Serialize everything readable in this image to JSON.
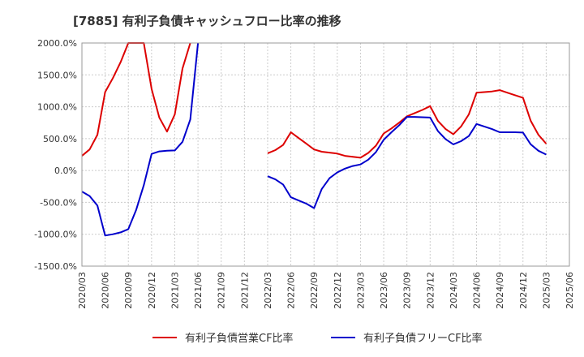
{
  "chart_data": {
    "type": "line",
    "title": "[7885]  有利子負債キャッシュフロー比率の推移",
    "xlabel": "",
    "ylabel": "",
    "ylim": [
      -1500,
      2000
    ],
    "y_ticks": [
      "2000.0%",
      "1500.0%",
      "1000.0%",
      "500.0%",
      "0.0%",
      "-500.0%",
      "-1000.0%",
      "-1500.0%"
    ],
    "y_tick_values": [
      2000,
      1500,
      1000,
      500,
      0,
      -500,
      -1000,
      -1500
    ],
    "x_ticks": [
      "2020/03",
      "2020/06",
      "2020/09",
      "2020/12",
      "2021/03",
      "2021/06",
      "2021/09",
      "2021/12",
      "2022/03",
      "2022/06",
      "2022/09",
      "2022/12",
      "2023/03",
      "2023/06",
      "2023/09",
      "2023/12",
      "2024/03",
      "2024/06",
      "2024/09",
      "2024/12",
      "2025/03",
      "2025/06"
    ],
    "grid": true,
    "legend_position": "bottom",
    "series": [
      {
        "name": "有利子負債営業CF比率",
        "color": "#dd0000",
        "segments": [
          [
            [
              "2020/03",
              230
            ],
            [
              "2020/04",
              330
            ],
            [
              "2020/05",
              560
            ],
            [
              "2020/06",
              1230
            ],
            [
              "2020/07",
              1450
            ],
            [
              "2020/08",
              1700
            ],
            [
              "2020/09",
              2000
            ],
            [
              "2020/11",
              2000
            ],
            [
              "2020/12",
              1280
            ],
            [
              "2021/01",
              830
            ],
            [
              "2021/02",
              610
            ],
            [
              "2021/03",
              880
            ],
            [
              "2021/04",
              1600
            ],
            [
              "2021/05",
              2000
            ]
          ],
          [
            [
              "2022/03",
              270
            ],
            [
              "2022/04",
              320
            ],
            [
              "2022/05",
              400
            ],
            [
              "2022/06",
              600
            ],
            [
              "2022/07",
              510
            ],
            [
              "2022/08",
              420
            ],
            [
              "2022/09",
              330
            ],
            [
              "2022/10",
              295
            ],
            [
              "2022/11",
              280
            ],
            [
              "2022/12",
              265
            ],
            [
              "2023/01",
              230
            ],
            [
              "2023/02",
              215
            ],
            [
              "2023/03",
              200
            ],
            [
              "2023/04",
              275
            ],
            [
              "2023/05",
              390
            ],
            [
              "2023/06",
              580
            ],
            [
              "2023/07",
              660
            ],
            [
              "2023/08",
              750
            ],
            [
              "2023/09",
              850
            ],
            [
              "2023/10",
              900
            ],
            [
              "2023/11",
              950
            ],
            [
              "2023/12",
              1010
            ],
            [
              "2024/01",
              780
            ],
            [
              "2024/02",
              650
            ],
            [
              "2024/03",
              570
            ],
            [
              "2024/04",
              690
            ],
            [
              "2024/05",
              880
            ],
            [
              "2024/06",
              1220
            ],
            [
              "2024/07",
              1230
            ],
            [
              "2024/08",
              1240
            ],
            [
              "2024/09",
              1260
            ],
            [
              "2024/10",
              1220
            ],
            [
              "2024/11",
              1180
            ],
            [
              "2024/12",
              1140
            ],
            [
              "2025/01",
              780
            ],
            [
              "2025/02",
              560
            ],
            [
              "2025/03",
              420
            ]
          ]
        ]
      },
      {
        "name": "有利子負債フリーCF比率",
        "color": "#0000cc",
        "segments": [
          [
            [
              "2020/03",
              -330
            ],
            [
              "2020/04",
              -400
            ],
            [
              "2020/05",
              -550
            ],
            [
              "2020/06",
              -1020
            ],
            [
              "2020/07",
              -1000
            ],
            [
              "2020/08",
              -970
            ],
            [
              "2020/09",
              -920
            ],
            [
              "2020/10",
              -620
            ],
            [
              "2020/11",
              -230
            ],
            [
              "2020/12",
              260
            ],
            [
              "2021/01",
              300
            ],
            [
              "2021/02",
              310
            ],
            [
              "2021/03",
              315
            ],
            [
              "2021/04",
              450
            ],
            [
              "2021/05",
              800
            ],
            [
              "2021/06",
              2000
            ]
          ],
          [
            [
              "2022/03",
              -90
            ],
            [
              "2022/04",
              -140
            ],
            [
              "2022/05",
              -220
            ],
            [
              "2022/06",
              -420
            ],
            [
              "2022/07",
              -470
            ],
            [
              "2022/08",
              -520
            ],
            [
              "2022/09",
              -590
            ],
            [
              "2022/10",
              -290
            ],
            [
              "2022/11",
              -120
            ],
            [
              "2022/12",
              -30
            ],
            [
              "2023/01",
              30
            ],
            [
              "2023/02",
              70
            ],
            [
              "2023/03",
              95
            ],
            [
              "2023/04",
              170
            ],
            [
              "2023/05",
              290
            ],
            [
              "2023/06",
              480
            ],
            [
              "2023/07",
              600
            ],
            [
              "2023/08",
              710
            ],
            [
              "2023/09",
              840
            ],
            [
              "2023/10",
              840
            ],
            [
              "2023/11",
              835
            ],
            [
              "2023/12",
              830
            ],
            [
              "2024/01",
              620
            ],
            [
              "2024/02",
              490
            ],
            [
              "2024/03",
              410
            ],
            [
              "2024/04",
              460
            ],
            [
              "2024/05",
              540
            ],
            [
              "2024/06",
              730
            ],
            [
              "2024/07",
              690
            ],
            [
              "2024/08",
              650
            ],
            [
              "2024/09",
              600
            ],
            [
              "2024/10",
              600
            ],
            [
              "2024/11",
              600
            ],
            [
              "2024/12",
              595
            ],
            [
              "2025/01",
              410
            ],
            [
              "2025/02",
              310
            ],
            [
              "2025/03",
              250
            ]
          ]
        ]
      }
    ]
  }
}
